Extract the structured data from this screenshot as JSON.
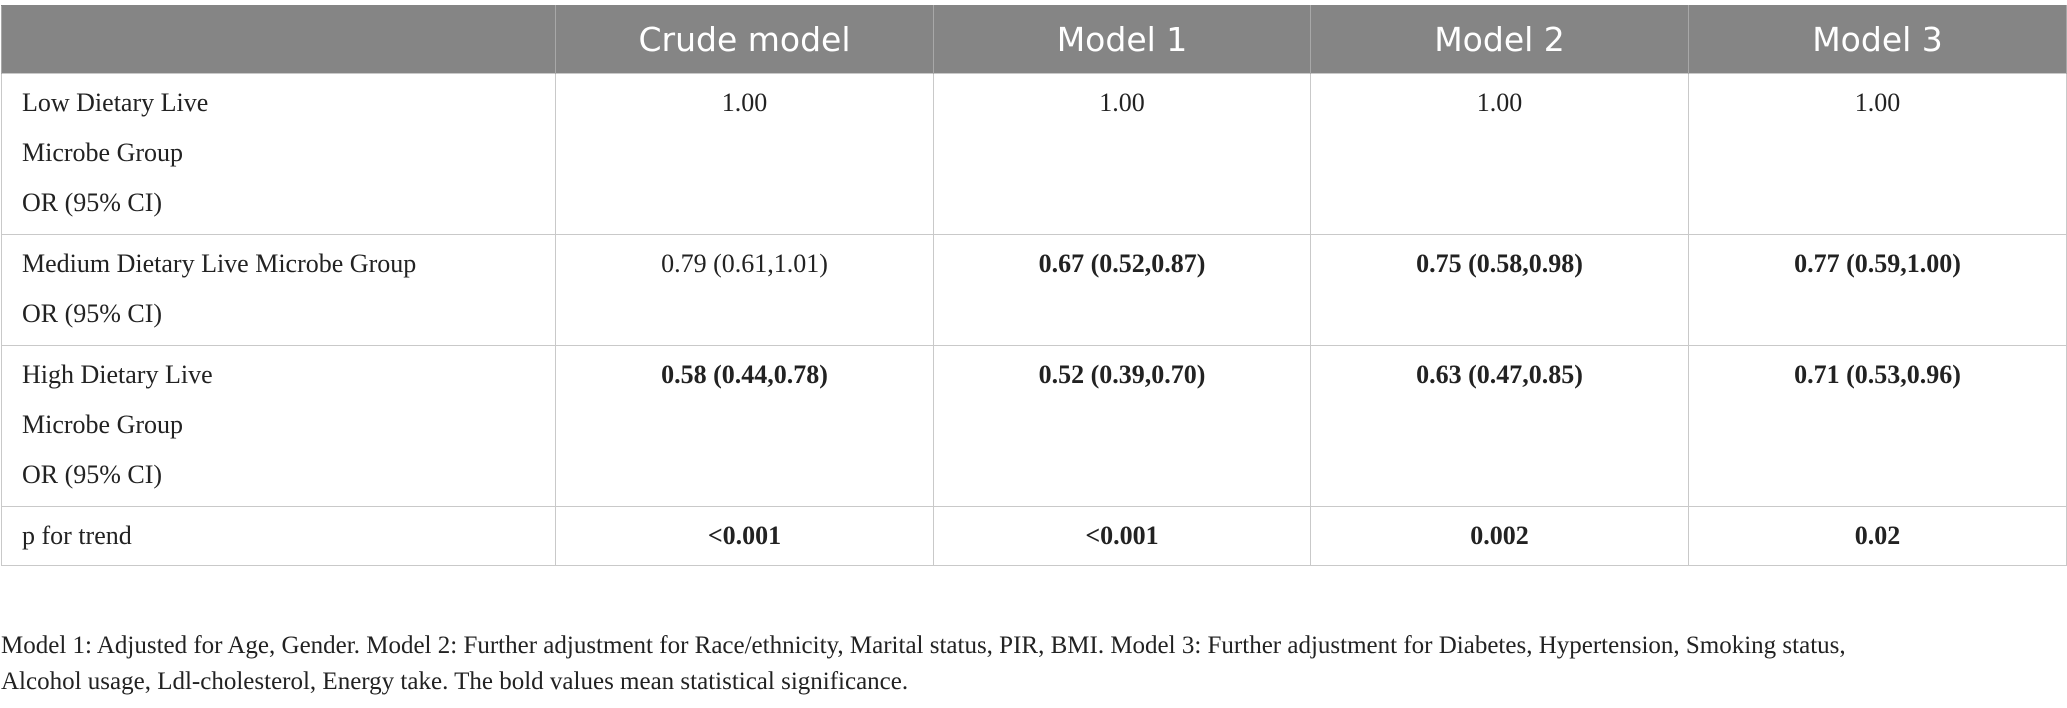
{
  "table": {
    "headers": [
      "",
      "Crude model",
      "Model 1",
      "Model 2",
      "Model 3"
    ],
    "rows": [
      {
        "label_lines": [
          "Low Dietary Live",
          "Microbe Group",
          "OR (95% CI)"
        ],
        "values": [
          "1.00",
          "1.00",
          "1.00",
          "1.00"
        ],
        "bold": [
          false,
          false,
          false,
          false
        ]
      },
      {
        "label_lines": [
          "Medium Dietary Live Microbe Group",
          "OR (95% CI)"
        ],
        "values": [
          "0.79 (0.61,1.01)",
          "0.67 (0.52,0.87)",
          "0.75 (0.58,0.98)",
          "0.77 (0.59,1.00)"
        ],
        "bold": [
          false,
          true,
          true,
          true
        ]
      },
      {
        "label_lines": [
          "High Dietary Live",
          "Microbe Group",
          "OR (95% CI)"
        ],
        "values": [
          "0.58 (0.44,0.78)",
          "0.52 (0.39,0.70)",
          "0.63 (0.47,0.85)",
          "0.71 (0.53,0.96)"
        ],
        "bold": [
          true,
          true,
          true,
          true
        ]
      },
      {
        "label_lines": [
          "p for trend"
        ],
        "values": [
          "<0.001",
          "<0.001",
          "0.002",
          "0.02"
        ],
        "bold": [
          true,
          true,
          true,
          true
        ]
      }
    ]
  },
  "footnote": {
    "lines": [
      "Model 1: Adjusted for Age, Gender. Model 2: Further adjustment for Race/ethnicity, Marital status, PIR, BMI. Model 3: Further adjustment for Diabetes, Hypertension, Smoking status,",
      "Alcohol usage, Ldl-cholesterol, Energy take. The bold values mean statistical significance."
    ]
  }
}
